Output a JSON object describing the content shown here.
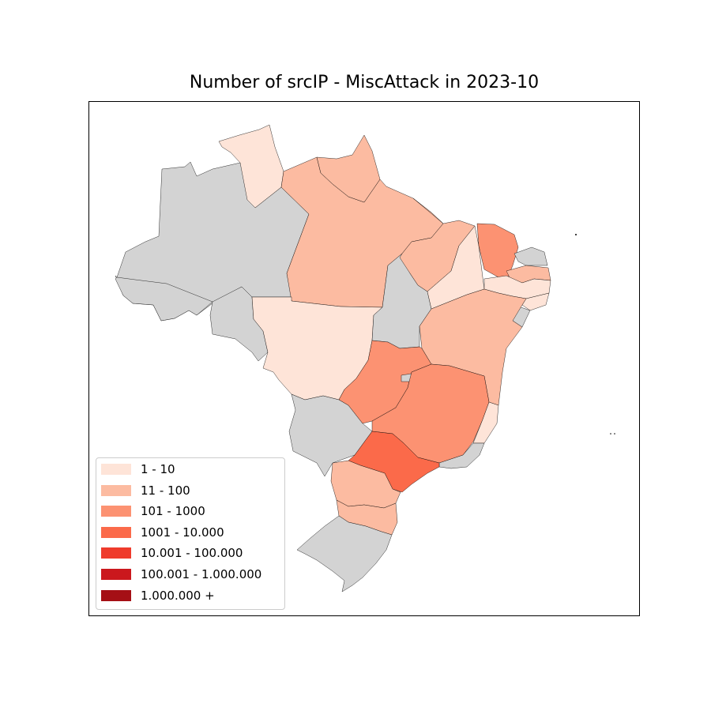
{
  "title": "Number of srcIP - MiscAttack in 2023-10",
  "no_data_color": "#d3d3d3",
  "legend": [
    {
      "label": "1 - 10",
      "color": "#fee4d8"
    },
    {
      "label": "11 - 100",
      "color": "#fcbba1"
    },
    {
      "label": "101 - 1000",
      "color": "#fc9272"
    },
    {
      "label": "1001 - 10.000",
      "color": "#fb6a4a"
    },
    {
      "label": "10.001 - 100.000",
      "color": "#ef3b2c"
    },
    {
      "label": "100.001 - 1.000.000",
      "color": "#cb181d"
    },
    {
      "label": "1.000.000 +",
      "color": "#a50f15"
    }
  ],
  "chart_data": {
    "type": "choropleth",
    "title": "Number of srcIP - MiscAttack in 2023-10",
    "states": [
      {
        "state": "AM",
        "class": null
      },
      {
        "state": "AC",
        "class": null
      },
      {
        "state": "RO",
        "class": null
      },
      {
        "state": "RR",
        "class": "1 - 10"
      },
      {
        "state": "PA",
        "class": "11 - 100"
      },
      {
        "state": "AP",
        "class": "11 - 100"
      },
      {
        "state": "MT",
        "class": "1 - 10"
      },
      {
        "state": "MS",
        "class": null
      },
      {
        "state": "TO",
        "class": null
      },
      {
        "state": "MA",
        "class": "11 - 100"
      },
      {
        "state": "PI",
        "class": "1 - 10"
      },
      {
        "state": "CE",
        "class": "101 - 1000"
      },
      {
        "state": "RN",
        "class": null
      },
      {
        "state": "PB",
        "class": "11 - 100"
      },
      {
        "state": "PE",
        "class": "1 - 10"
      },
      {
        "state": "AL",
        "class": "1 - 10"
      },
      {
        "state": "SE",
        "class": null
      },
      {
        "state": "BA",
        "class": "11 - 100"
      },
      {
        "state": "GO",
        "class": "101 - 1000"
      },
      {
        "state": "DF",
        "class": null
      },
      {
        "state": "MG",
        "class": "101 - 1000"
      },
      {
        "state": "ES",
        "class": "1 - 10"
      },
      {
        "state": "RJ",
        "class": null
      },
      {
        "state": "SP",
        "class": "1001 - 10.000"
      },
      {
        "state": "PR",
        "class": "11 - 100"
      },
      {
        "state": "SC",
        "class": "11 - 100"
      },
      {
        "state": "RS",
        "class": null
      }
    ]
  }
}
